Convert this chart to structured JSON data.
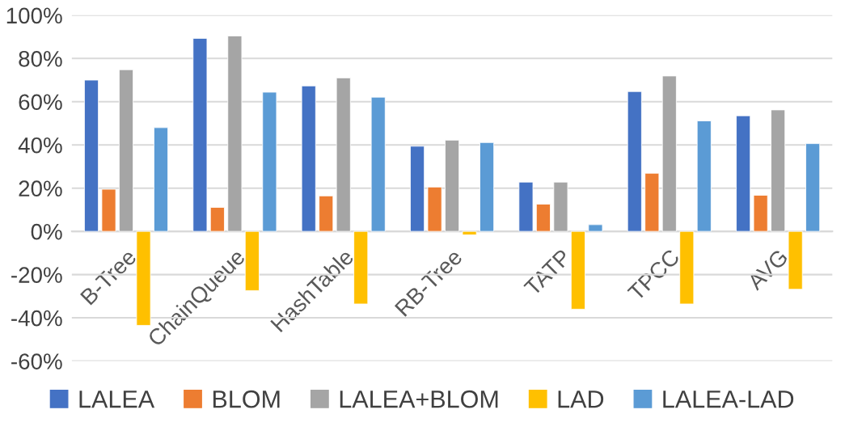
{
  "chart_data": {
    "type": "bar",
    "categories": [
      "B-Tree",
      "ChainQueue",
      "HashTable",
      "RB-Tree",
      "TATP",
      "TPCC",
      "AVG"
    ],
    "series": [
      {
        "name": "LALEA",
        "color": "#4472c4",
        "values": [
          70,
          89.3,
          67.3,
          39.4,
          22.8,
          64.7,
          53.5
        ]
      },
      {
        "name": "BLOM",
        "color": "#ed7d31",
        "values": [
          19.5,
          11.1,
          16.4,
          20.5,
          12.6,
          26.9,
          16.7
        ]
      },
      {
        "name": "LALEA+BLOM",
        "color": "#a5a5a5",
        "values": [
          74.8,
          90.4,
          71,
          42.2,
          22.8,
          71.9,
          56.2
        ]
      },
      {
        "name": "LAD",
        "color": "#ffc000",
        "values": [
          -43.5,
          -27.4,
          -33.6,
          -1.6,
          -36,
          -33.6,
          -26.8
        ]
      },
      {
        "name": "LALEA-LAD",
        "color": "#5b9bd5",
        "values": [
          48,
          64.4,
          62.1,
          41.1,
          3.1,
          51.1,
          40.6
        ]
      }
    ],
    "ylim": [
      -60,
      100
    ],
    "yticks": [
      {
        "value": -60,
        "label": "-60%"
      },
      {
        "value": -40,
        "label": "-40%"
      },
      {
        "value": -20,
        "label": "-20%"
      },
      {
        "value": 0,
        "label": "0%"
      },
      {
        "value": 20,
        "label": "20%"
      },
      {
        "value": 40,
        "label": "40%"
      },
      {
        "value": 60,
        "label": "60%"
      },
      {
        "value": 80,
        "label": "80%"
      },
      {
        "value": 100,
        "label": "100%"
      }
    ],
    "grid": "y",
    "legend": "bottom"
  }
}
